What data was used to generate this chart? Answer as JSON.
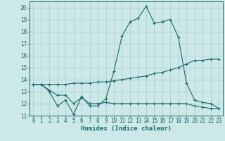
{
  "xlabel": "Humidex (Indice chaleur)",
  "bg_color": "#cce8e8",
  "grid_color": "#b0d0d0",
  "line_color": "#1a6b6b",
  "xlim": [
    -0.5,
    23.5
  ],
  "ylim": [
    11,
    20.5
  ],
  "xticks": [
    0,
    1,
    2,
    3,
    4,
    5,
    6,
    7,
    8,
    9,
    10,
    11,
    12,
    13,
    14,
    15,
    16,
    17,
    18,
    19,
    20,
    21,
    22,
    23
  ],
  "yticks": [
    11,
    12,
    13,
    14,
    15,
    16,
    17,
    18,
    19,
    20
  ],
  "series1": [
    13.6,
    13.6,
    13.0,
    11.8,
    12.3,
    11.1,
    12.6,
    11.8,
    11.8,
    12.4,
    14.7,
    17.6,
    18.8,
    19.1,
    20.1,
    18.7,
    18.8,
    19.0,
    17.5,
    13.7,
    12.3,
    12.1,
    12.0,
    11.6
  ],
  "series2": [
    13.6,
    13.6,
    13.6,
    13.6,
    13.6,
    13.7,
    13.7,
    13.7,
    13.8,
    13.8,
    13.9,
    14.0,
    14.1,
    14.2,
    14.3,
    14.5,
    14.6,
    14.8,
    15.0,
    15.3,
    15.6,
    15.6,
    15.7,
    15.7
  ],
  "series3": [
    13.6,
    13.6,
    13.1,
    12.7,
    12.7,
    12.0,
    12.5,
    12.0,
    12.0,
    12.1,
    12.0,
    12.0,
    12.0,
    12.0,
    12.0,
    12.0,
    12.0,
    12.0,
    12.0,
    12.0,
    11.8,
    11.7,
    11.6,
    11.6
  ],
  "label_fontsize": 5.5,
  "xlabel_fontsize": 6.5
}
